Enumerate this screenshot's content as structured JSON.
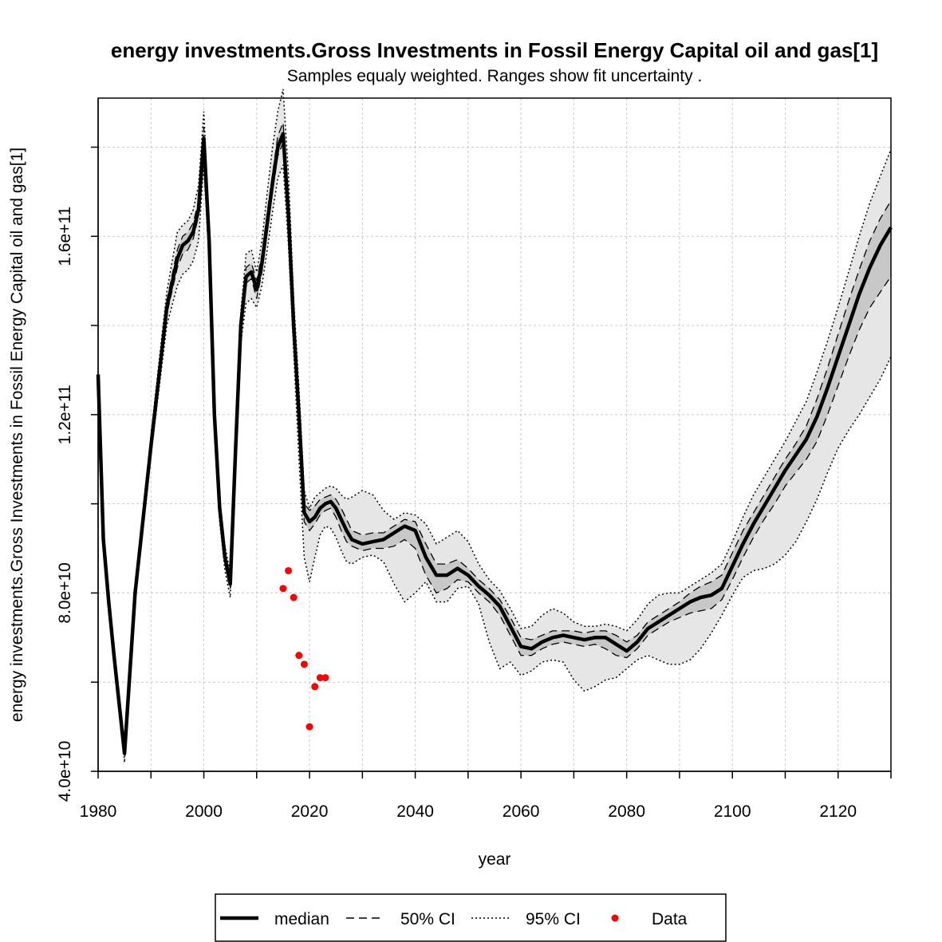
{
  "chart_data": {
    "type": "line",
    "title": "energy investments.Gross Investments in Fossil Energy Capital oil and gas[1]",
    "subtitle": "Samples equaly weighted. Ranges show  fit uncertainty .",
    "xlabel": "year",
    "ylabel": "energy investments.Gross Investments in Fossil Energy Capital oil and gas[1]",
    "xlim": [
      1980,
      2130
    ],
    "ylim": [
      40000000000,
      191000000000
    ],
    "x_ticks": [
      1980,
      2000,
      2020,
      2040,
      2060,
      2080,
      2100,
      2120
    ],
    "x_tick_labels": [
      "1980",
      "2000",
      "2020",
      "2040",
      "2060",
      "2080",
      "2100",
      "2120"
    ],
    "x_minor_ticks": [
      1990,
      2010,
      2030,
      2050,
      2070,
      2090,
      2110,
      2130
    ],
    "y_ticks": [
      40000000000,
      80000000000,
      120000000000,
      160000000000
    ],
    "y_tick_labels": [
      "4.0e+10",
      "8.0e+10",
      "1.2e+11",
      "1.6e+11"
    ],
    "y_minor_ticks": [
      60000000000,
      100000000000,
      140000000000,
      180000000000
    ],
    "grid": true,
    "legend_position": "bottom",
    "legend": [
      {
        "label": "median",
        "style": "solid-thick"
      },
      {
        "label": "50% CI",
        "style": "dashed"
      },
      {
        "label": "95% CI",
        "style": "dotted"
      },
      {
        "label": "Data",
        "style": "red-dot"
      }
    ],
    "colors": {
      "median": "#000000",
      "band50": "#c8c8c8",
      "band95": "#e6e6e6",
      "data": "#ff0000",
      "grid": "#c8c8c8"
    },
    "series": [
      {
        "name": "median",
        "x": [
          1980,
          1981,
          1982,
          1983,
          1984,
          1985,
          1987,
          1990,
          1993,
          1995,
          1996,
          1997,
          1998,
          1999,
          2000,
          2001,
          2002,
          2003,
          2004,
          2005,
          2006,
          2007,
          2008,
          2009,
          2010,
          2011,
          2012,
          2013,
          2014,
          2015,
          2016,
          2017,
          2018,
          2019,
          2020,
          2021,
          2022,
          2023,
          2024,
          2025,
          2026,
          2027,
          2028,
          2030,
          2032,
          2034,
          2036,
          2038,
          2040,
          2042,
          2044,
          2046,
          2048,
          2050,
          2052,
          2054,
          2056,
          2058,
          2060,
          2062,
          2064,
          2066,
          2068,
          2070,
          2072,
          2074,
          2076,
          2078,
          2080,
          2082,
          2084,
          2086,
          2088,
          2090,
          2092,
          2094,
          2096,
          2098,
          2100,
          2102,
          2104,
          2106,
          2108,
          2110,
          2112,
          2114,
          2116,
          2118,
          2120,
          2122,
          2124,
          2126,
          2128,
          2130
        ],
        "y": [
          129000000000,
          92000000000,
          78000000000,
          66000000000,
          55000000000,
          44000000000,
          80000000000,
          113000000000,
          144000000000,
          155000000000,
          158000000000,
          159000000000,
          161000000000,
          166000000000,
          182000000000,
          159000000000,
          120000000000,
          99000000000,
          88000000000,
          82000000000,
          112000000000,
          140000000000,
          151000000000,
          152000000000,
          148000000000,
          154000000000,
          163000000000,
          172000000000,
          180000000000,
          183000000000,
          165000000000,
          140000000000,
          120000000000,
          98000000000,
          96000000000,
          97000000000,
          99000000000,
          100000000000,
          100500000000,
          99000000000,
          96500000000,
          94000000000,
          92000000000,
          91000000000,
          91500000000,
          92000000000,
          93500000000,
          95000000000,
          94000000000,
          88000000000,
          84000000000,
          84000000000,
          85500000000,
          84000000000,
          81500000000,
          79500000000,
          77000000000,
          72500000000,
          68000000000,
          67500000000,
          69000000000,
          70000000000,
          70500000000,
          70000000000,
          69500000000,
          70000000000,
          70000000000,
          68500000000,
          67000000000,
          69000000000,
          72000000000,
          73500000000,
          75000000000,
          76500000000,
          78000000000,
          79000000000,
          79500000000,
          81000000000,
          86000000000,
          91000000000,
          95500000000,
          99500000000,
          103500000000,
          107500000000,
          111000000000,
          114500000000,
          119500000000,
          126000000000,
          133000000000,
          140000000000,
          147000000000,
          153000000000,
          158000000000,
          162000000000
        ],
        "y_50_low": [
          129000000000,
          92000000000,
          78000000000,
          66000000000,
          55000000000,
          43500000000,
          79500000000,
          112500000000,
          142500000000,
          153000000000,
          156000000000,
          157000000000,
          159500000000,
          164500000000,
          180000000000,
          157500000000,
          119000000000,
          98000000000,
          87000000000,
          81000000000,
          111000000000,
          139000000000,
          149500000000,
          150500000000,
          146000000000,
          152000000000,
          161000000000,
          170000000000,
          178000000000,
          181000000000,
          163000000000,
          138500000000,
          118000000000,
          96000000000,
          94000000000,
          95500000000,
          97500000000,
          98500000000,
          99000000000,
          97000000000,
          94000000000,
          91500000000,
          90500000000,
          89500000000,
          90000000000,
          90000000000,
          90500000000,
          92000000000,
          90000000000,
          84000000000,
          80000000000,
          81000000000,
          83000000000,
          82500000000,
          80000000000,
          78000000000,
          75000000000,
          70500000000,
          66000000000,
          66000000000,
          67500000000,
          68500000000,
          69000000000,
          68500000000,
          68000000000,
          68500000000,
          67500000000,
          66000000000,
          65500000000,
          67500000000,
          70500000000,
          72000000000,
          73500000000,
          74500000000,
          75500000000,
          76000000000,
          76500000000,
          78500000000,
          83000000000,
          88000000000,
          92500000000,
          96500000000,
          100000000000,
          104000000000,
          107000000000,
          110000000000,
          114000000000,
          120000000000,
          126500000000,
          133000000000,
          139000000000,
          144000000000,
          147500000000,
          151000000000
        ],
        "y_50_high": [
          129000000000,
          92000000000,
          78000000000,
          66000000000,
          55000000000,
          44500000000,
          80500000000,
          114000000000,
          145500000000,
          157000000000,
          160000000000,
          161000000000,
          163000000000,
          168000000000,
          184500000000,
          160500000000,
          121000000000,
          100000000000,
          89000000000,
          83000000000,
          113000000000,
          141000000000,
          153000000000,
          154000000000,
          150000000000,
          156000000000,
          165500000000,
          174000000000,
          182500000000,
          185500000000,
          167000000000,
          141500000000,
          122000000000,
          100000000000,
          98500000000,
          99500000000,
          101000000000,
          101500000000,
          102000000000,
          101000000000,
          99000000000,
          96500000000,
          94000000000,
          93000000000,
          93500000000,
          93500000000,
          95000000000,
          96500000000,
          96000000000,
          91000000000,
          86500000000,
          86500000000,
          87500000000,
          85500000000,
          83000000000,
          81000000000,
          78500000000,
          74500000000,
          70000000000,
          69500000000,
          70500000000,
          71500000000,
          71500000000,
          71500000000,
          71000000000,
          71500000000,
          71500000000,
          70500000000,
          69000000000,
          70500000000,
          73500000000,
          75000000000,
          76500000000,
          78000000000,
          80000000000,
          81500000000,
          82500000000,
          84000000000,
          89000000000,
          94000000000,
          98000000000,
          102000000000,
          106000000000,
          110000000000,
          113500000000,
          117500000000,
          123500000000,
          130500000000,
          138000000000,
          145500000000,
          152500000000,
          159000000000,
          164000000000,
          168000000000
        ],
        "y_95_low": [
          129000000000,
          92000000000,
          78000000000,
          66000000000,
          55000000000,
          42000000000,
          78500000000,
          111000000000,
          140000000000,
          149000000000,
          151500000000,
          152500000000,
          154500000000,
          159000000000,
          176000000000,
          154000000000,
          116500000000,
          96000000000,
          85000000000,
          79000000000,
          108500000000,
          136000000000,
          145000000000,
          146000000000,
          144000000000,
          149000000000,
          157000000000,
          165500000000,
          173000000000,
          176000000000,
          158000000000,
          134000000000,
          110000000000,
          88000000000,
          82500000000,
          88000000000,
          93000000000,
          95000000000,
          94500000000,
          92500000000,
          89500000000,
          87000000000,
          86500000000,
          88000000000,
          88500000000,
          87000000000,
          82000000000,
          78000000000,
          80000000000,
          82500000000,
          78000000000,
          78000000000,
          81000000000,
          81500000000,
          77500000000,
          69000000000,
          63000000000,
          64500000000,
          61500000000,
          62500000000,
          64500000000,
          65000000000,
          64500000000,
          60500000000,
          58000000000,
          59000000000,
          60500000000,
          61000000000,
          63000000000,
          65000000000,
          66000000000,
          65000000000,
          64000000000,
          64000000000,
          65000000000,
          67500000000,
          71000000000,
          75000000000,
          79500000000,
          83500000000,
          85000000000,
          85500000000,
          86500000000,
          88500000000,
          91500000000,
          96000000000,
          101000000000,
          107000000000,
          112500000000,
          116500000000,
          120000000000,
          124000000000,
          128000000000,
          133000000000
        ],
        "y_95_high": [
          129000000000,
          92000000000,
          78000000000,
          66000000000,
          55000000000,
          46000000000,
          81500000000,
          115500000000,
          147500000000,
          161000000000,
          162500000000,
          163500000000,
          166000000000,
          171500000000,
          188000000000,
          162500000000,
          122500000000,
          101500000000,
          90500000000,
          84500000000,
          114000000000,
          143000000000,
          156000000000,
          157000000000,
          152000000000,
          159000000000,
          170000000000,
          180000000000,
          188000000000,
          193000000000,
          174000000000,
          146000000000,
          126000000000,
          103000000000,
          99000000000,
          101500000000,
          102500000000,
          103500000000,
          104000000000,
          103500000000,
          102000000000,
          101000000000,
          101500000000,
          103000000000,
          102000000000,
          98500000000,
          96500000000,
          98000000000,
          97500000000,
          95500000000,
          91000000000,
          92500000000,
          94000000000,
          91500000000,
          86500000000,
          83000000000,
          80500000000,
          76500000000,
          72000000000,
          72500000000,
          75000000000,
          76500000000,
          75500000000,
          73500000000,
          72500000000,
          72500000000,
          73000000000,
          72500000000,
          71500000000,
          74000000000,
          77500000000,
          79500000000,
          80000000000,
          80000000000,
          81500000000,
          83000000000,
          84500000000,
          86500000000,
          91500000000,
          97000000000,
          102000000000,
          106000000000,
          110000000000,
          114000000000,
          118500000000,
          123000000000,
          129500000000,
          136500000000,
          144000000000,
          152000000000,
          160000000000,
          167500000000,
          173500000000,
          179500000000
        ]
      },
      {
        "name": "Data",
        "x": [
          2015,
          2016,
          2017,
          2018,
          2019,
          2020,
          2021,
          2022,
          2023
        ],
        "y": [
          81000000000,
          85000000000,
          79000000000,
          66000000000,
          64000000000,
          50000000000,
          59000000000,
          61000000000,
          61000000000
        ]
      }
    ]
  }
}
